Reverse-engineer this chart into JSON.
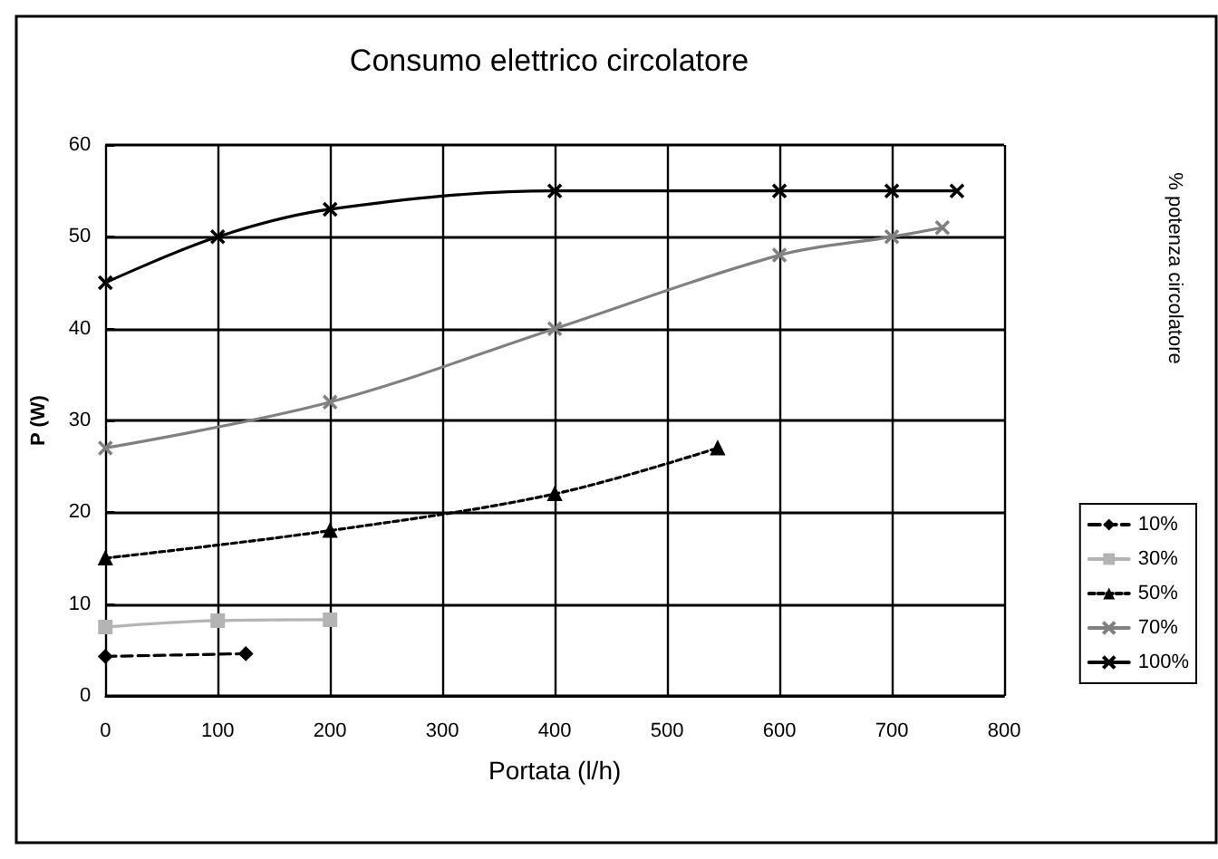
{
  "chart_data": {
    "type": "line",
    "title": "Consumo elettrico circolatore",
    "xlabel": "Portata (l/h)",
    "ylabel": "P (W)",
    "legend_title": "% potenza circolatore",
    "xlim": [
      0,
      800
    ],
    "xticks": [
      0,
      100,
      200,
      300,
      400,
      500,
      600,
      700,
      800
    ],
    "ylim": [
      0,
      60
    ],
    "yticks": [
      0,
      10,
      20,
      30,
      40,
      50,
      60
    ],
    "grid": true,
    "legend": "right",
    "series": [
      {
        "name": "10%",
        "color": "#000000",
        "marker": "diamond",
        "line_style": "dashed",
        "x": [
          0,
          125
        ],
        "values": [
          4.3,
          4.6
        ]
      },
      {
        "name": "30%",
        "color": "#b4b4b4",
        "marker": "square",
        "line_style": "solid",
        "x": [
          0,
          100,
          200
        ],
        "values": [
          7.5,
          8.2,
          8.3
        ]
      },
      {
        "name": "50%",
        "color": "#000000",
        "marker": "triangle",
        "line_style": "dotted",
        "x": [
          0,
          200,
          400,
          545
        ],
        "values": [
          15,
          18,
          22,
          27
        ]
      },
      {
        "name": "70%",
        "color": "#808080",
        "marker": "cross",
        "line_style": "solid",
        "x": [
          0,
          200,
          400,
          600,
          700,
          745
        ],
        "values": [
          27,
          32,
          40,
          48,
          50,
          51
        ]
      },
      {
        "name": "100%",
        "color": "#000000",
        "marker": "cross",
        "line_style": "solid",
        "x": [
          0,
          100,
          200,
          400,
          600,
          700,
          758
        ],
        "values": [
          45,
          50,
          53,
          55,
          55,
          55,
          55
        ]
      }
    ]
  }
}
